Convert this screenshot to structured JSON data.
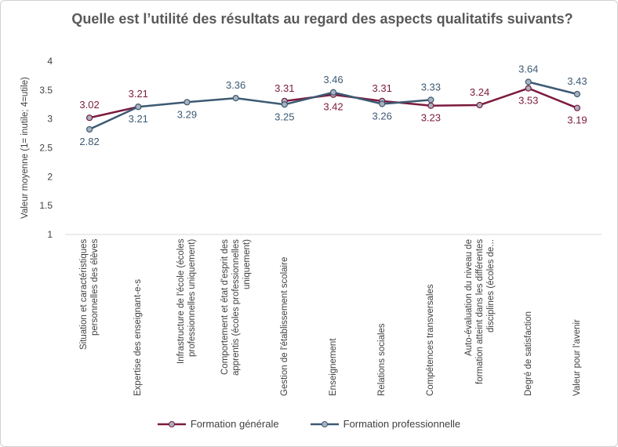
{
  "chart_data": {
    "type": "line",
    "title": "Quelle est l’utilité des résultats au regard des aspects qualitatifs suivants?",
    "y_label": "Valeur moyenne (1= inutile; 4=utile)",
    "categories": [
      "Situation et caractéristiques personnelles des élèves",
      "Expertise des enseignant-e-s",
      "Infrastructure de l'école (écoles professionnelles uniquement)",
      "Comportement et état d'esprit des apprentis (écoles professionnelles uniquement)",
      "Gestion de l'établissement scolaire",
      "Enseignement",
      "Relations sociales",
      "Compétences transversales",
      "Auto-évaluation du niveau de formation atteint dans les différentes disciplines (écoles de...",
      "Degré de satisfaction",
      "Valeur pour l'avenir"
    ],
    "series": [
      {
        "name": "Formation générale",
        "color": "#7b1a3e",
        "values": [
          3.02,
          3.21,
          null,
          null,
          3.31,
          3.42,
          3.31,
          3.23,
          3.24,
          3.53,
          3.19
        ]
      },
      {
        "name": "Formation professionnelle",
        "color": "#3d5a73",
        "values": [
          2.82,
          3.21,
          3.29,
          3.36,
          3.25,
          3.46,
          3.26,
          3.33,
          null,
          3.64,
          3.43
        ]
      }
    ],
    "ylim": [
      1,
      4
    ],
    "yticks": [
      1,
      1.5,
      2,
      2.5,
      3,
      3.5,
      4
    ],
    "grid": false,
    "legend": "bottom"
  }
}
